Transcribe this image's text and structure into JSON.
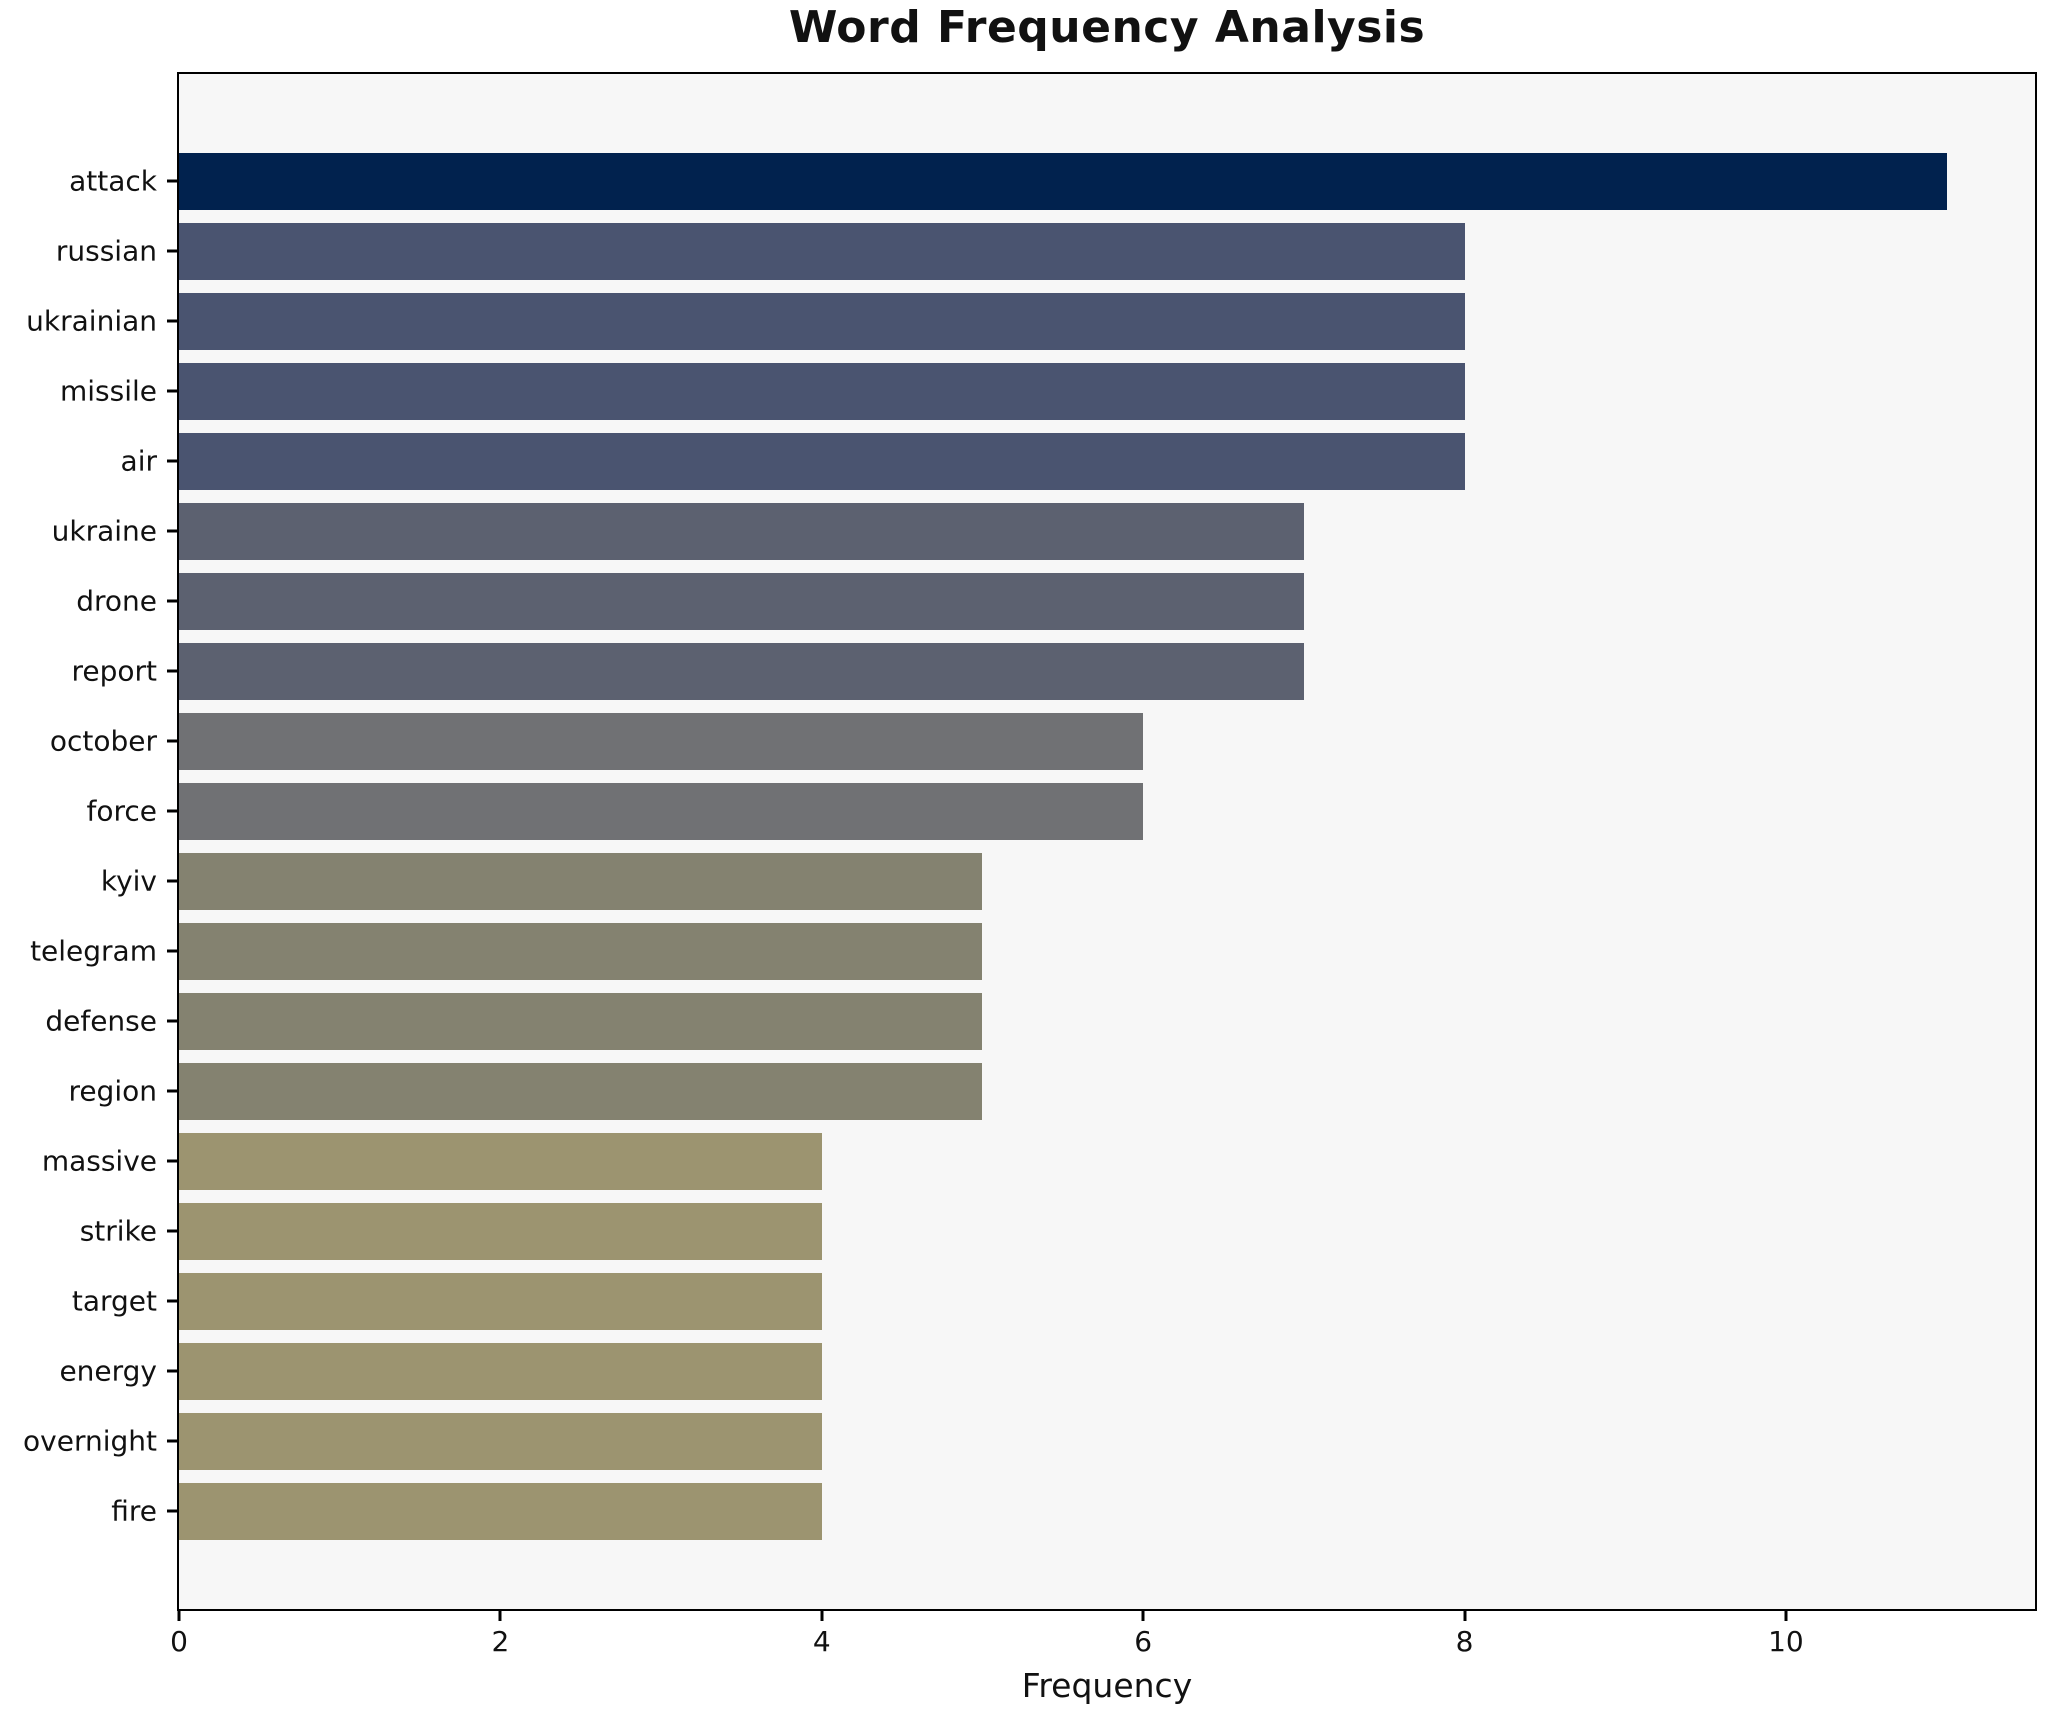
{
  "chart_data": {
    "type": "bar",
    "orientation": "horizontal",
    "title": "Word Frequency Analysis",
    "xlabel": "Frequency",
    "ylabel": "",
    "categories": [
      "attack",
      "russian",
      "ukrainian",
      "missile",
      "air",
      "ukraine",
      "drone",
      "report",
      "october",
      "force",
      "kyiv",
      "telegram",
      "defense",
      "region",
      "massive",
      "strike",
      "target",
      "energy",
      "overnight",
      "fire"
    ],
    "values": [
      11,
      8,
      8,
      8,
      8,
      7,
      7,
      7,
      6,
      6,
      5,
      5,
      5,
      5,
      4,
      4,
      4,
      4,
      4,
      4
    ],
    "bar_colors": [
      "#01224e",
      "#4a5470",
      "#4a5470",
      "#4a5470",
      "#4a5470",
      "#5c6170",
      "#5c6170",
      "#5c6170",
      "#707174",
      "#707174",
      "#848270",
      "#848270",
      "#848270",
      "#848270",
      "#9c9470",
      "#9c9470",
      "#9c9470",
      "#9c9470",
      "#9c9470",
      "#9c9470"
    ],
    "xlim": [
      0,
      11.55
    ],
    "xticks": [
      0,
      2,
      4,
      6,
      8,
      10
    ],
    "grid": false,
    "legend": null,
    "plot_background": "#f7f7f7",
    "figure_background": "#ffffff",
    "axis_color": "#000000"
  }
}
